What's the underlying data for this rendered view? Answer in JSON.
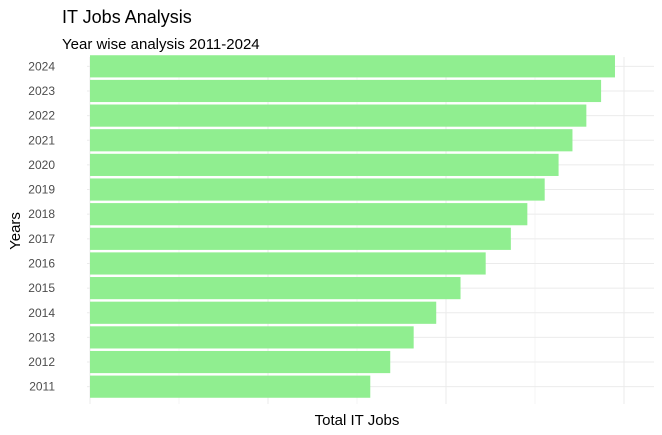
{
  "chart_data": {
    "type": "bar",
    "orientation": "horizontal",
    "title": "IT Jobs Analysis",
    "subtitle": "Year wise analysis 2011-2024",
    "xlabel": "Total IT Jobs",
    "ylabel": "Years",
    "categories": [
      "2011",
      "2012",
      "2013",
      "2014",
      "2015",
      "2016",
      "2017",
      "2018",
      "2019",
      "2020",
      "2021",
      "2022",
      "2023",
      "2024"
    ],
    "values": [
      32.3,
      34.6,
      37.3,
      39.9,
      42.7,
      45.6,
      48.5,
      50.4,
      52.4,
      54.0,
      55.6,
      57.2,
      58.9,
      60.5
    ],
    "xlim": [
      0,
      62
    ],
    "x_tick_labels_shown": false,
    "grid": true,
    "bar_color": "#90ee90",
    "background": "#ffffff"
  }
}
